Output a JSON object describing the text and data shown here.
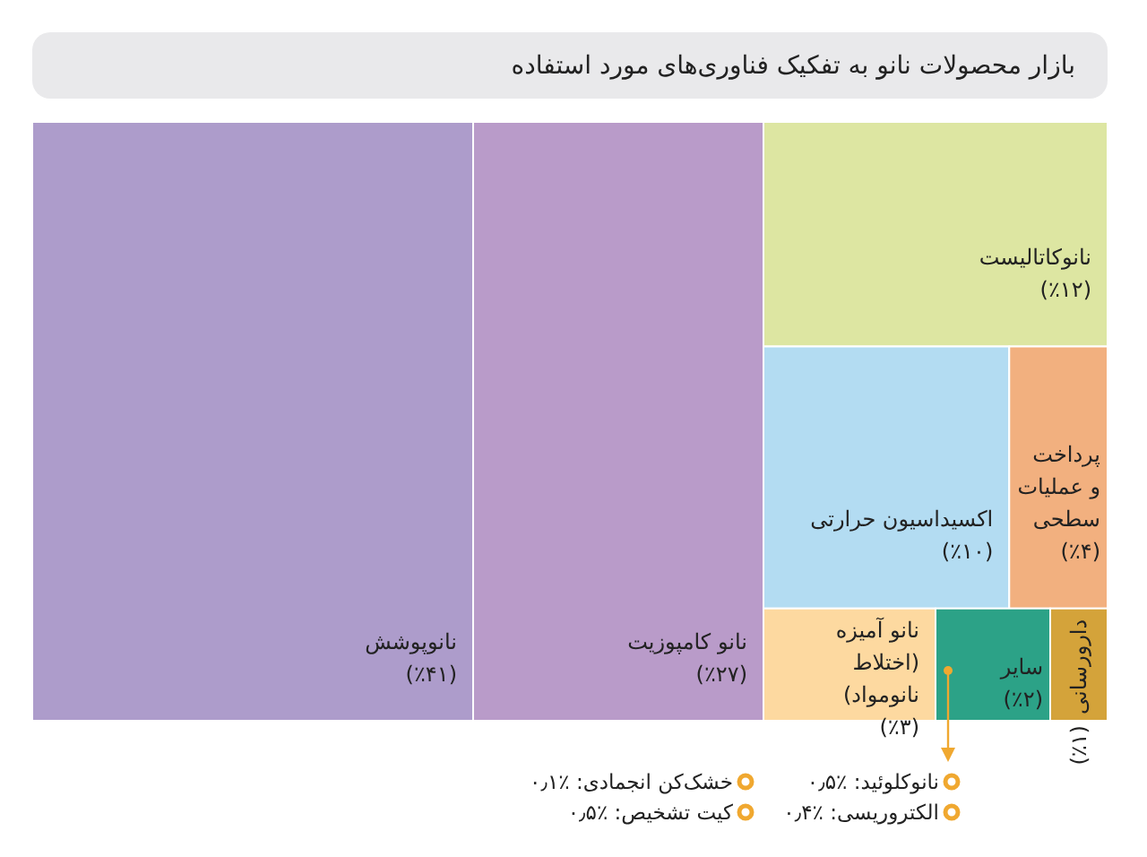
{
  "chart_data": {
    "type": "other",
    "title": "بازار محصولات نانو به تفکیک فناوری‌های مورد استفاده",
    "categories": [
      "نانوپوشش",
      "نانو کامپوزیت",
      "نانوکاتالیست",
      "اکسیداسیون حرارتی",
      "پرداخت و عملیات سطحی",
      "نانو آمیزه (اختلاط نانومواد)",
      "سایر",
      "دارورسانی"
    ],
    "values": [
      41,
      27,
      12,
      10,
      4,
      3,
      2,
      1
    ],
    "value_labels": [
      "(٪۴۱)",
      "(٪۲۷)",
      "(٪۱۲)",
      "(٪۱۰)",
      "(٪۴)",
      "(٪۳)",
      "(٪۲)",
      "(٪۱)"
    ],
    "colors": [
      "#ad9ccb",
      "#b99bc9",
      "#dde6a2",
      "#b3dcf2",
      "#f2b07f",
      "#fdd9a0",
      "#2ca287",
      "#d4a33a"
    ],
    "annotations": [
      "نانوکلوئید: ٪۰٫۵",
      "الکتروریسی: ٪۰٫۴",
      "خشک‌کن انجمادی: ٪۰٫۱",
      "کیت تشخیص: ٪۰٫۵"
    ]
  }
}
